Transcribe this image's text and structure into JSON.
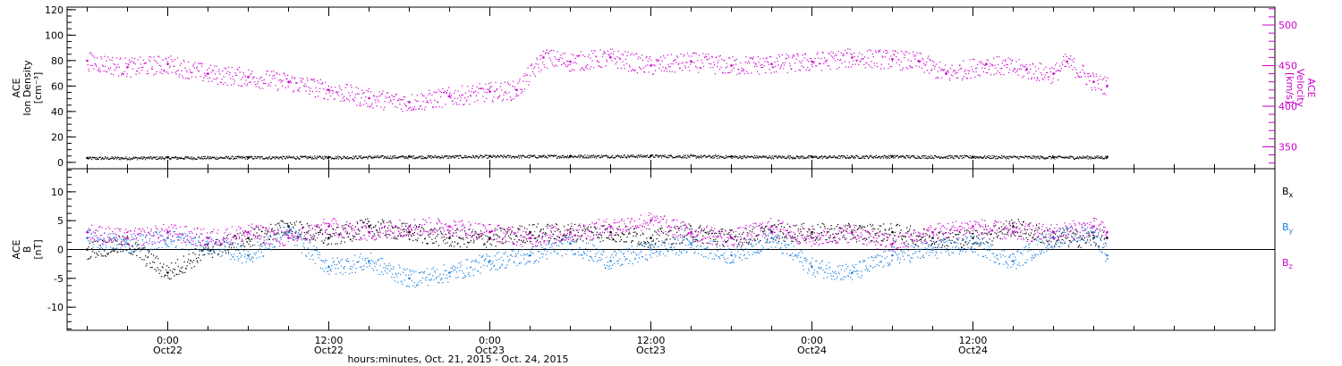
{
  "chart_data": [
    {
      "panel": "top",
      "type": "scatter",
      "left_axis": {
        "label_lines": [
          "ACE",
          "Ion Density",
          "[cm⁻³]"
        ],
        "ylim": [
          -5,
          122
        ],
        "ticks": [
          0,
          20,
          40,
          60,
          80,
          100,
          120
        ],
        "tick_labels": [
          "0",
          "20",
          "40",
          "60",
          "80",
          "100",
          "120"
        ]
      },
      "right_axis": {
        "label_lines": [
          "ACE",
          "Velocity",
          "[km/s]"
        ],
        "ylim": [
          323,
          522
        ],
        "ticks": [
          350,
          400,
          450,
          500
        ],
        "tick_labels": [
          "350",
          "400",
          "450",
          "500"
        ],
        "color": "#cc00cc"
      },
      "series": [
        {
          "axis": "left",
          "color": "#000000",
          "points": [
            [
              -6,
              3.5
            ],
            [
              0,
              3.8
            ],
            [
              6,
              4
            ],
            [
              12,
              4.2
            ],
            [
              18,
              4.5
            ],
            [
              24,
              4.8
            ],
            [
              30,
              5
            ],
            [
              36,
              5.2
            ],
            [
              42,
              4.6
            ],
            [
              48,
              4.4
            ],
            [
              54,
              4.8
            ],
            [
              60,
              4.5
            ],
            [
              66,
              4.2
            ],
            [
              70,
              4.2
            ]
          ]
        },
        {
          "axis": "right",
          "color": "#cc00cc",
          "points": [
            [
              -6,
              456
            ],
            [
              -3,
              448
            ],
            [
              0,
              452
            ],
            [
              3,
              440
            ],
            [
              6,
              436
            ],
            [
              9,
              430
            ],
            [
              12,
              420
            ],
            [
              15,
              410
            ],
            [
              18,
              405
            ],
            [
              21,
              412
            ],
            [
              24,
              418
            ],
            [
              26,
              420
            ],
            [
              28,
              460
            ],
            [
              30,
              455
            ],
            [
              33,
              460
            ],
            [
              36,
              450
            ],
            [
              39,
              455
            ],
            [
              42,
              450
            ],
            [
              45,
              452
            ],
            [
              48,
              455
            ],
            [
              51,
              460
            ],
            [
              54,
              458
            ],
            [
              56,
              455
            ],
            [
              58,
              440
            ],
            [
              61,
              452
            ],
            [
              64,
              445
            ],
            [
              66,
              440
            ],
            [
              67,
              455
            ],
            [
              69,
              430
            ],
            [
              70,
              425
            ]
          ]
        }
      ]
    },
    {
      "panel": "bottom",
      "type": "scatter",
      "left_axis": {
        "label_lines": [
          "ACE",
          "B",
          "[nT]"
        ],
        "ylim": [
          -14,
          14
        ],
        "ticks": [
          -10,
          -5,
          0,
          5,
          10
        ],
        "tick_labels": [
          "-10",
          "-5",
          "0",
          "5",
          "10"
        ]
      },
      "zero_line": true,
      "series": [
        {
          "name": "Bx",
          "color": "#000000",
          "points": [
            [
              -6,
              0
            ],
            [
              -3,
              1
            ],
            [
              0,
              -4
            ],
            [
              3,
              0
            ],
            [
              6,
              2
            ],
            [
              9,
              4
            ],
            [
              12,
              2
            ],
            [
              15,
              4
            ],
            [
              18,
              3
            ],
            [
              21,
              2
            ],
            [
              24,
              2
            ],
            [
              27,
              3
            ],
            [
              30,
              3
            ],
            [
              33,
              3
            ],
            [
              36,
              2
            ],
            [
              39,
              3
            ],
            [
              42,
              2
            ],
            [
              45,
              3
            ],
            [
              48,
              3
            ],
            [
              51,
              3
            ],
            [
              54,
              3
            ],
            [
              57,
              2
            ],
            [
              60,
              2
            ],
            [
              63,
              4
            ],
            [
              66,
              2
            ],
            [
              69,
              2
            ],
            [
              70,
              2
            ]
          ]
        },
        {
          "name": "By",
          "color": "#1a7fe0",
          "points": [
            [
              -6,
              2
            ],
            [
              -3,
              1
            ],
            [
              0,
              2
            ],
            [
              3,
              1
            ],
            [
              6,
              -1
            ],
            [
              9,
              3
            ],
            [
              12,
              -3
            ],
            [
              15,
              -2
            ],
            [
              18,
              -5
            ],
            [
              21,
              -4
            ],
            [
              24,
              -2
            ],
            [
              27,
              -1
            ],
            [
              30,
              1
            ],
            [
              33,
              -2
            ],
            [
              36,
              0
            ],
            [
              39,
              1
            ],
            [
              42,
              -1
            ],
            [
              45,
              2
            ],
            [
              48,
              -3
            ],
            [
              51,
              -4
            ],
            [
              54,
              -1
            ],
            [
              57,
              0
            ],
            [
              60,
              1
            ],
            [
              63,
              -2
            ],
            [
              66,
              2
            ],
            [
              69,
              3
            ],
            [
              70,
              -1
            ]
          ]
        },
        {
          "name": "Bz",
          "color": "#cc00cc",
          "points": [
            [
              -6,
              3
            ],
            [
              -3,
              2
            ],
            [
              0,
              3
            ],
            [
              3,
              2
            ],
            [
              6,
              3
            ],
            [
              9,
              2
            ],
            [
              12,
              4
            ],
            [
              15,
              3
            ],
            [
              18,
              4
            ],
            [
              21,
              4
            ],
            [
              24,
              3
            ],
            [
              27,
              2
            ],
            [
              30,
              3
            ],
            [
              33,
              4
            ],
            [
              36,
              5
            ],
            [
              39,
              3
            ],
            [
              42,
              2
            ],
            [
              45,
              4
            ],
            [
              48,
              2
            ],
            [
              51,
              3
            ],
            [
              54,
              1
            ],
            [
              57,
              3
            ],
            [
              60,
              4
            ],
            [
              63,
              3
            ],
            [
              66,
              3
            ],
            [
              69,
              4
            ],
            [
              70,
              3
            ]
          ]
        }
      ],
      "legend": {
        "placement": "right",
        "entries": [
          {
            "main": "B",
            "sub": "x",
            "color": "#000000"
          },
          {
            "main": "B",
            "sub": "y",
            "color": "#1a7fe0"
          },
          {
            "main": "B",
            "sub": "z",
            "color": "#cc00cc"
          }
        ]
      }
    }
  ],
  "x_axis": {
    "xlim": [
      -7.5,
      82.5
    ],
    "major_ticks": [
      0,
      12,
      24,
      36,
      48,
      60
    ],
    "labels_time": [
      "0:00",
      "12:00",
      "0:00",
      "12:00",
      "0:00",
      "12:00"
    ],
    "labels_date": [
      "Oct22",
      "Oct22",
      "Oct23",
      "Oct23",
      "Oct24",
      "Oct24"
    ],
    "title": "hours:minutes, Oct. 21, 2015 - Oct. 24, 2015"
  }
}
